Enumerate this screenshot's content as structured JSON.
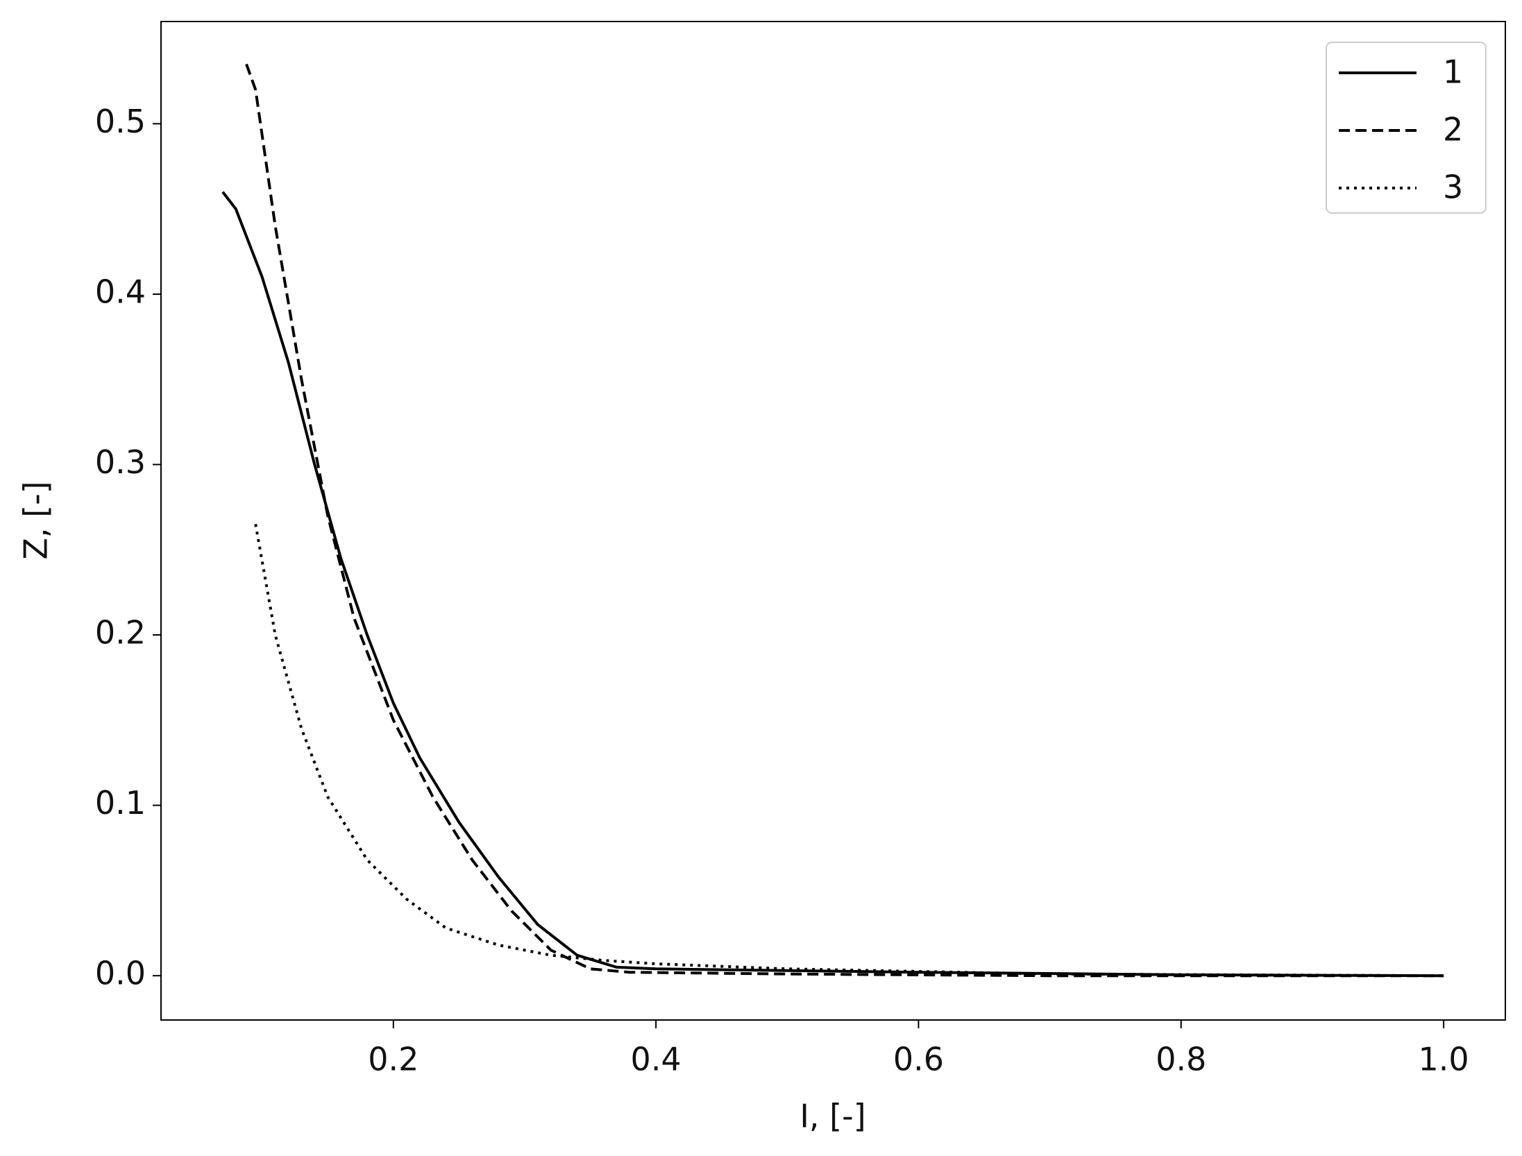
{
  "chart_data": {
    "type": "line",
    "x_label": "I, [-]",
    "y_label": "Z, [-]",
    "xlim": [
      0.023,
      1.047
    ],
    "ylim": [
      -0.026,
      0.56
    ],
    "xticks": [
      0.2,
      0.4,
      0.6,
      0.8,
      {
        "value": 1.0,
        "label": "1.0"
      }
    ],
    "yticks": [
      {
        "value": 0.0,
        "label": "0.0"
      },
      0.1,
      0.2,
      0.3,
      0.4,
      0.5
    ],
    "legend": "upper right",
    "series": [
      {
        "name": "1",
        "color": "#000000",
        "dash": "solid",
        "x": [
          0.07,
          0.08,
          0.1,
          0.12,
          0.14,
          0.16,
          0.18,
          0.2,
          0.22,
          0.25,
          0.28,
          0.31,
          0.34,
          0.37,
          0.4,
          0.5,
          0.6,
          0.8,
          1.0
        ],
        "values": [
          0.46,
          0.45,
          0.41,
          0.36,
          0.3,
          0.245,
          0.2,
          0.16,
          0.128,
          0.09,
          0.058,
          0.03,
          0.012,
          0.005,
          0.004,
          0.003,
          0.002,
          0.0005,
          0
        ]
      },
      {
        "name": "2",
        "color": "#000000",
        "dash": "dashed",
        "x": [
          0.088,
          0.095,
          0.11,
          0.13,
          0.15,
          0.17,
          0.2,
          0.23,
          0.26,
          0.29,
          0.32,
          0.35,
          0.38,
          0.5,
          0.7,
          1.0
        ],
        "values": [
          0.535,
          0.52,
          0.44,
          0.35,
          0.27,
          0.21,
          0.15,
          0.105,
          0.068,
          0.038,
          0.015,
          0.004,
          0.002,
          0.001,
          0,
          0
        ]
      },
      {
        "name": "3",
        "color": "#000000",
        "dash": "dotted",
        "x": [
          0.095,
          0.11,
          0.13,
          0.15,
          0.18,
          0.21,
          0.24,
          0.28,
          0.32,
          0.36,
          0.4,
          0.5,
          0.7,
          1.0
        ],
        "values": [
          0.265,
          0.2,
          0.145,
          0.105,
          0.068,
          0.045,
          0.028,
          0.018,
          0.012,
          0.009,
          0.007,
          0.004,
          0.001,
          0
        ]
      }
    ]
  }
}
